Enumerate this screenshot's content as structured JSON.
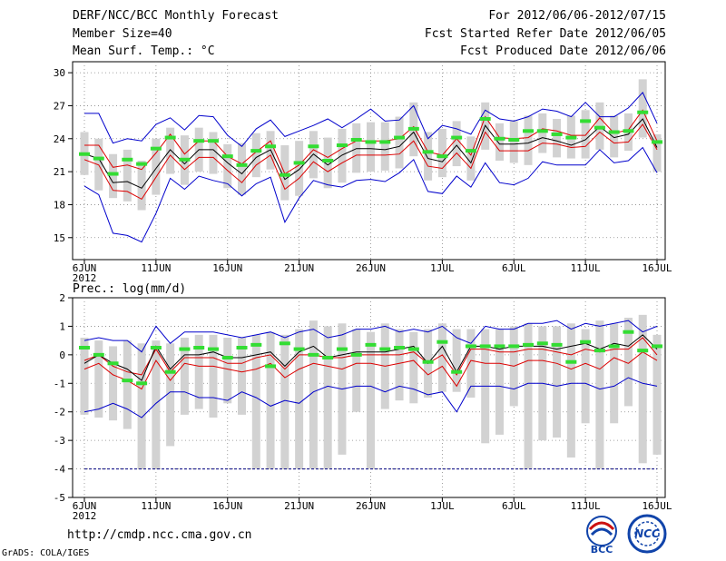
{
  "header": {
    "title": "DERF/NCC/BCC Monthly Forecast",
    "member_size": "Member Size=40",
    "variable": "Mean Surf. Temp.: °C",
    "period": "For 2012/06/06-2012/07/15",
    "started": "Fcst Started Refer Date 2012/06/05",
    "produced": "Fcst Produced Date 2012/06/06"
  },
  "footer": {
    "url": "http://cmdp.ncc.cma.gov.cn",
    "grads": "GrADS: COLA/IGES",
    "logo_bcc": "BCC",
    "logo_ncc": "NCC"
  },
  "colors": {
    "box": "#d2d2d2",
    "mean": "#000000",
    "spread": "#dd0000",
    "envelope": "#0000cc",
    "green": "#33dd33",
    "grid": "#888888",
    "floor_line": "#000080"
  },
  "chart_data": [
    {
      "type": "box-ensemble",
      "title": "Mean Surf. Temp.: °C",
      "ylim": [
        13,
        31
      ],
      "yticks": [
        15,
        18,
        21,
        24,
        27,
        30
      ],
      "ytick_labels": [
        "15",
        "18",
        "21",
        "24",
        "27",
        "30"
      ],
      "x_day_range": [
        0,
        40
      ],
      "xticks": [
        {
          "day": 0,
          "label": "6JUN",
          "sub": "2012"
        },
        {
          "day": 5,
          "label": "11JUN"
        },
        {
          "day": 10,
          "label": "16JUN"
        },
        {
          "day": 15,
          "label": "21JUN"
        },
        {
          "day": 20,
          "label": "26JUN"
        },
        {
          "day": 25,
          "label": "1JUL"
        },
        {
          "day": 30,
          "label": "6JUL"
        },
        {
          "day": 35,
          "label": "11JUL"
        },
        {
          "day": 40,
          "label": "16JUL"
        }
      ],
      "series": {
        "max": [
          26.3,
          26.3,
          23.6,
          24.0,
          23.8,
          25.3,
          25.9,
          24.8,
          26.1,
          26.0,
          24.3,
          23.3,
          24.9,
          25.7,
          24.2,
          24.7,
          25.2,
          25.8,
          25.0,
          25.8,
          26.7,
          25.6,
          25.7,
          27.0,
          24.0,
          25.2,
          24.9,
          24.4,
          26.6,
          25.8,
          25.6,
          26.0,
          26.7,
          26.5,
          26.0,
          27.3,
          26.0,
          26.0,
          26.8,
          28.2,
          25.4
        ],
        "upper": [
          23.4,
          23.4,
          21.4,
          21.6,
          21.2,
          22.7,
          24.4,
          22.6,
          23.8,
          23.8,
          22.4,
          21.7,
          22.8,
          23.8,
          20.8,
          21.6,
          23.0,
          22.3,
          23.1,
          23.8,
          23.8,
          23.8,
          24.0,
          25.1,
          22.8,
          22.5,
          24.0,
          22.5,
          26.0,
          24.1,
          24.0,
          24.1,
          24.9,
          24.7,
          24.3,
          24.3,
          25.9,
          24.5,
          24.8,
          26.6,
          23.8
        ],
        "mean": [
          22.6,
          22.2,
          20.0,
          20.1,
          19.5,
          21.3,
          23.0,
          21.7,
          23.0,
          23.0,
          21.8,
          20.8,
          22.3,
          23.0,
          20.3,
          21.2,
          22.6,
          21.6,
          22.5,
          23.1,
          23.1,
          23.0,
          23.3,
          24.6,
          22.2,
          21.9,
          23.4,
          21.8,
          25.2,
          23.5,
          23.5,
          23.6,
          24.1,
          23.8,
          23.4,
          23.9,
          25.1,
          24.1,
          24.4,
          25.8,
          23.2
        ],
        "lower": [
          22.1,
          21.6,
          19.3,
          19.2,
          18.5,
          20.5,
          22.5,
          21.2,
          22.3,
          22.3,
          21.1,
          20.0,
          21.6,
          22.5,
          19.4,
          20.4,
          21.9,
          21.0,
          21.8,
          22.5,
          22.5,
          22.5,
          22.6,
          23.8,
          21.5,
          21.3,
          22.7,
          21.3,
          24.6,
          22.9,
          22.9,
          22.9,
          23.6,
          23.5,
          23.2,
          23.3,
          24.6,
          23.6,
          23.7,
          25.3,
          23.0
        ],
        "min": [
          19.7,
          18.9,
          15.4,
          15.2,
          14.6,
          17.2,
          20.4,
          19.4,
          20.6,
          20.2,
          19.9,
          18.8,
          19.9,
          20.5,
          16.4,
          18.6,
          20.2,
          19.8,
          19.6,
          20.2,
          20.3,
          20.1,
          20.9,
          22.1,
          19.2,
          19.0,
          20.6,
          19.6,
          21.8,
          20.0,
          19.8,
          20.4,
          21.9,
          21.6,
          21.6,
          21.6,
          23.0,
          21.8,
          22.0,
          23.2,
          20.9
        ],
        "box_high": [
          24.6,
          24.0,
          22.6,
          23.0,
          22.0,
          24.0,
          25.0,
          24.3,
          25.0,
          24.6,
          23.5,
          23.6,
          24.5,
          24.7,
          23.4,
          23.8,
          24.7,
          24.1,
          24.9,
          25.4,
          25.5,
          25.5,
          26.0,
          27.3,
          24.6,
          24.9,
          25.6,
          24.2,
          27.3,
          25.4,
          25.6,
          26.1,
          26.3,
          25.8,
          26.1,
          26.6,
          27.3,
          26.1,
          26.3,
          29.4,
          24.4
        ],
        "box_low": [
          20.7,
          19.3,
          18.6,
          18.3,
          17.5,
          18.9,
          20.8,
          19.8,
          21.0,
          20.8,
          19.5,
          18.9,
          20.5,
          21.2,
          18.4,
          18.8,
          20.4,
          19.5,
          20.0,
          20.9,
          21.0,
          21.1,
          21.3,
          22.4,
          20.2,
          20.5,
          21.5,
          20.2,
          23.0,
          22.0,
          21.8,
          21.6,
          22.7,
          22.3,
          22.2,
          22.2,
          23.0,
          22.3,
          22.9,
          24.1,
          21.0
        ],
        "green": [
          22.6,
          22.2,
          20.8,
          22.1,
          21.7,
          23.1,
          24.1,
          22.1,
          23.8,
          23.8,
          22.4,
          21.6,
          22.9,
          23.3,
          20.7,
          21.8,
          23.3,
          22.0,
          23.4,
          23.9,
          23.7,
          23.7,
          24.1,
          24.9,
          22.8,
          22.4,
          24.1,
          22.9,
          25.8,
          24.0,
          23.9,
          24.7,
          24.7,
          24.4,
          24.1,
          25.6,
          25.0,
          24.6,
          24.7,
          26.4,
          23.7
        ]
      }
    },
    {
      "type": "box-ensemble",
      "title": "Prec.: log(mm/d)",
      "ylim": [
        -5,
        2
      ],
      "yticks": [
        -5,
        -4,
        -3,
        -2,
        -1,
        0,
        1,
        2
      ],
      "ytick_labels": [
        "-5",
        "-4",
        "-3",
        "-2",
        "-1",
        "0",
        "1",
        "2"
      ],
      "x_day_range": [
        0,
        40
      ],
      "xticks": [
        {
          "day": 0,
          "label": "6JUN",
          "sub": "2012"
        },
        {
          "day": 5,
          "label": "11JUN"
        },
        {
          "day": 10,
          "label": "16JUN"
        },
        {
          "day": 15,
          "label": "21JUN"
        },
        {
          "day": 20,
          "label": "26JUN"
        },
        {
          "day": 25,
          "label": "1JUL"
        },
        {
          "day": 30,
          "label": "6JUL"
        },
        {
          "day": 35,
          "label": "11JUL"
        },
        {
          "day": 40,
          "label": "16JUL"
        }
      ],
      "floor_value": -4,
      "series": {
        "max": [
          0.5,
          0.6,
          0.5,
          0.5,
          0.1,
          1.0,
          0.4,
          0.8,
          0.8,
          0.8,
          0.7,
          0.6,
          0.7,
          0.8,
          0.6,
          0.8,
          0.9,
          0.6,
          0.7,
          0.9,
          0.9,
          1.0,
          0.8,
          0.9,
          0.8,
          1.0,
          0.6,
          0.4,
          1.0,
          0.9,
          0.9,
          1.1,
          1.1,
          1.2,
          0.9,
          1.1,
          1.0,
          1.1,
          1.2,
          0.8,
          1.0
        ],
        "mean": [
          -0.3,
          0.0,
          -0.3,
          -0.5,
          -0.9,
          0.3,
          -0.5,
          0.0,
          0.0,
          0.1,
          -0.1,
          -0.1,
          0.0,
          0.1,
          -0.4,
          0.1,
          0.3,
          -0.1,
          0.0,
          0.1,
          0.1,
          0.1,
          0.2,
          0.3,
          -0.3,
          0.3,
          -0.6,
          0.3,
          0.3,
          0.2,
          0.3,
          0.3,
          0.3,
          0.2,
          0.3,
          0.4,
          0.2,
          0.4,
          0.3,
          0.7,
          0.2
        ],
        "upper": [
          -0.2,
          0.0,
          -0.4,
          -0.6,
          -0.7,
          0.2,
          -0.6,
          -0.1,
          -0.1,
          -0.1,
          -0.3,
          -0.3,
          -0.1,
          0.0,
          -0.5,
          0.0,
          0.0,
          -0.1,
          -0.1,
          0.0,
          0.0,
          0.0,
          0.0,
          0.1,
          -0.3,
          0.0,
          -0.7,
          0.2,
          0.2,
          0.1,
          0.1,
          0.2,
          0.2,
          0.1,
          0.0,
          0.2,
          0.1,
          0.2,
          0.2,
          0.6,
          0.0
        ],
        "lower": [
          -0.5,
          -0.3,
          -0.7,
          -0.9,
          -1.2,
          -0.2,
          -0.9,
          -0.3,
          -0.4,
          -0.4,
          -0.5,
          -0.6,
          -0.5,
          -0.3,
          -0.8,
          -0.5,
          -0.3,
          -0.4,
          -0.5,
          -0.3,
          -0.3,
          -0.4,
          -0.3,
          -0.2,
          -0.7,
          -0.4,
          -1.1,
          -0.2,
          -0.3,
          -0.3,
          -0.4,
          -0.2,
          -0.2,
          -0.3,
          -0.5,
          -0.3,
          -0.5,
          -0.1,
          -0.3,
          0.1,
          -0.2
        ],
        "min": [
          -2.0,
          -1.9,
          -1.7,
          -1.9,
          -2.2,
          -1.7,
          -1.3,
          -1.3,
          -1.5,
          -1.5,
          -1.6,
          -1.3,
          -1.5,
          -1.8,
          -1.6,
          -1.7,
          -1.3,
          -1.1,
          -1.2,
          -1.1,
          -1.1,
          -1.3,
          -1.1,
          -1.2,
          -1.4,
          -1.3,
          -2.0,
          -1.1,
          -1.1,
          -1.1,
          -1.2,
          -1.0,
          -1.0,
          -1.1,
          -1.0,
          -1.0,
          -1.2,
          -1.1,
          -0.8,
          -1.0,
          -1.1
        ],
        "box_high": [
          0.6,
          0.5,
          0.3,
          0.5,
          0.4,
          0.5,
          0.4,
          0.6,
          0.7,
          0.7,
          0.6,
          0.6,
          0.7,
          0.8,
          0.7,
          0.9,
          1.2,
          1.0,
          1.1,
          0.9,
          0.8,
          1.1,
          0.9,
          0.8,
          0.9,
          1.1,
          0.9,
          0.9,
          0.9,
          0.9,
          1.0,
          1.1,
          1.0,
          1.0,
          1.1,
          0.9,
          1.2,
          1.1,
          1.3,
          1.4,
          0.7
        ],
        "box_low": [
          -2.1,
          -2.2,
          -2.3,
          -2.6,
          -4.0,
          -4.0,
          -3.2,
          -2.1,
          -1.9,
          -2.2,
          -1.7,
          -2.1,
          -4.0,
          -4.0,
          -4.0,
          -4.0,
          -4.0,
          -4.0,
          -3.5,
          -2.0,
          -4.0,
          -1.9,
          -1.6,
          -1.7,
          -1.5,
          -1.3,
          -1.3,
          -1.5,
          -3.1,
          -2.8,
          -1.8,
          -4.0,
          -3.0,
          -2.9,
          -3.6,
          -2.4,
          -4.0,
          -2.4,
          -1.8,
          -3.8,
          -3.5
        ],
        "green": [
          0.25,
          0.0,
          -0.3,
          -0.9,
          -1.0,
          0.25,
          -0.6,
          0.2,
          0.25,
          0.2,
          -0.1,
          0.25,
          0.35,
          -0.4,
          0.4,
          0.2,
          0.0,
          -0.1,
          0.2,
          0.0,
          0.35,
          0.2,
          0.25,
          0.2,
          -0.25,
          0.45,
          -0.6,
          0.3,
          0.3,
          0.3,
          0.3,
          0.35,
          0.4,
          0.35,
          -0.25,
          0.45,
          0.15,
          0.3,
          0.8,
          0.15,
          0.3
        ]
      }
    }
  ]
}
